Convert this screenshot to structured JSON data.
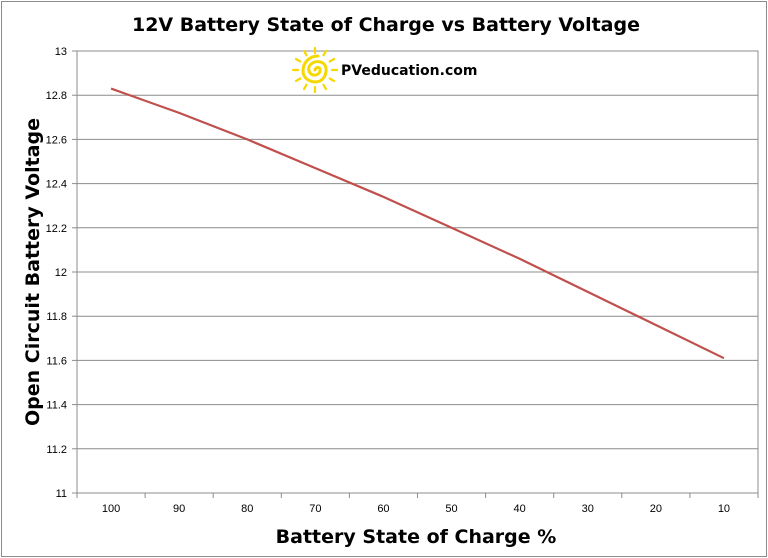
{
  "chart_data": {
    "type": "line",
    "title": "12V Battery State of Charge vs Battery Voltage",
    "xlabel": "Battery State of Charge %",
    "ylabel": "Open Circuit Battery Voltage",
    "categories": [
      "100",
      "90",
      "80",
      "70",
      "60",
      "50",
      "40",
      "30",
      "20",
      "10"
    ],
    "series": [
      {
        "values": [
          12.83,
          12.72,
          12.6,
          12.47,
          12.34,
          12.2,
          12.06,
          11.91,
          11.76,
          11.61
        ],
        "color": "#c0504d"
      }
    ],
    "ylim": [
      11,
      13
    ],
    "yticks": [
      "11",
      "11.2",
      "11.4",
      "11.6",
      "11.8",
      "12",
      "12.2",
      "12.4",
      "12.6",
      "12.8",
      "13"
    ],
    "grid": true,
    "legend": "none"
  },
  "logo": {
    "text": "PVeducation.com",
    "icon": "sun-spiral-icon",
    "color": "#f5d800"
  }
}
